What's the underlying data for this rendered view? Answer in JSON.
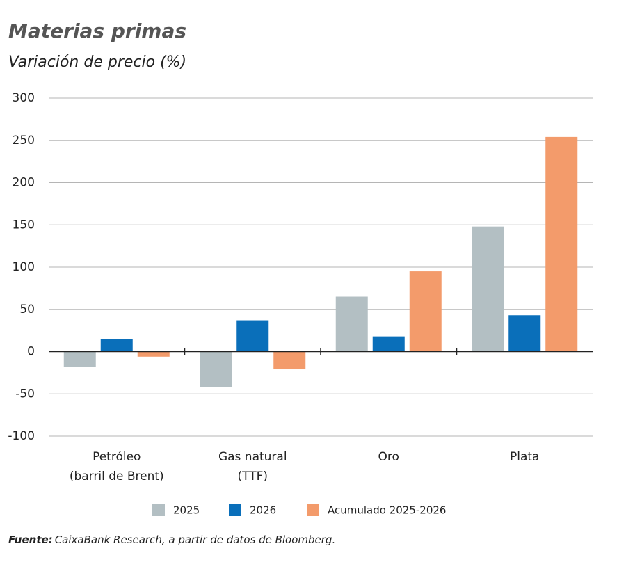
{
  "chart_data": {
    "type": "bar",
    "title": "Materias primas",
    "subtitle": "Variación de precio (%)",
    "categories": [
      "Petróleo\n(barril de Brent)",
      "Gas natural\n(TTF)",
      "Oro",
      "Plata"
    ],
    "series": [
      {
        "name": "2025",
        "color": "#b3bfc3",
        "values": [
          -18,
          -42,
          65,
          148
        ]
      },
      {
        "name": "2026",
        "color": "#0a6fba",
        "values": [
          15,
          37,
          18,
          43
        ]
      },
      {
        "name": "Acumulado 2025-2026",
        "color": "#f39b6b",
        "values": [
          -6,
          -21,
          95,
          254
        ]
      }
    ],
    "ylim": [
      -100,
      300
    ],
    "yticks": [
      -100,
      -50,
      0,
      50,
      100,
      150,
      200,
      250,
      300
    ],
    "grid": true,
    "source_label": "Fuente:",
    "source": "CaixaBank Research, a partir de datos de Bloomberg."
  }
}
